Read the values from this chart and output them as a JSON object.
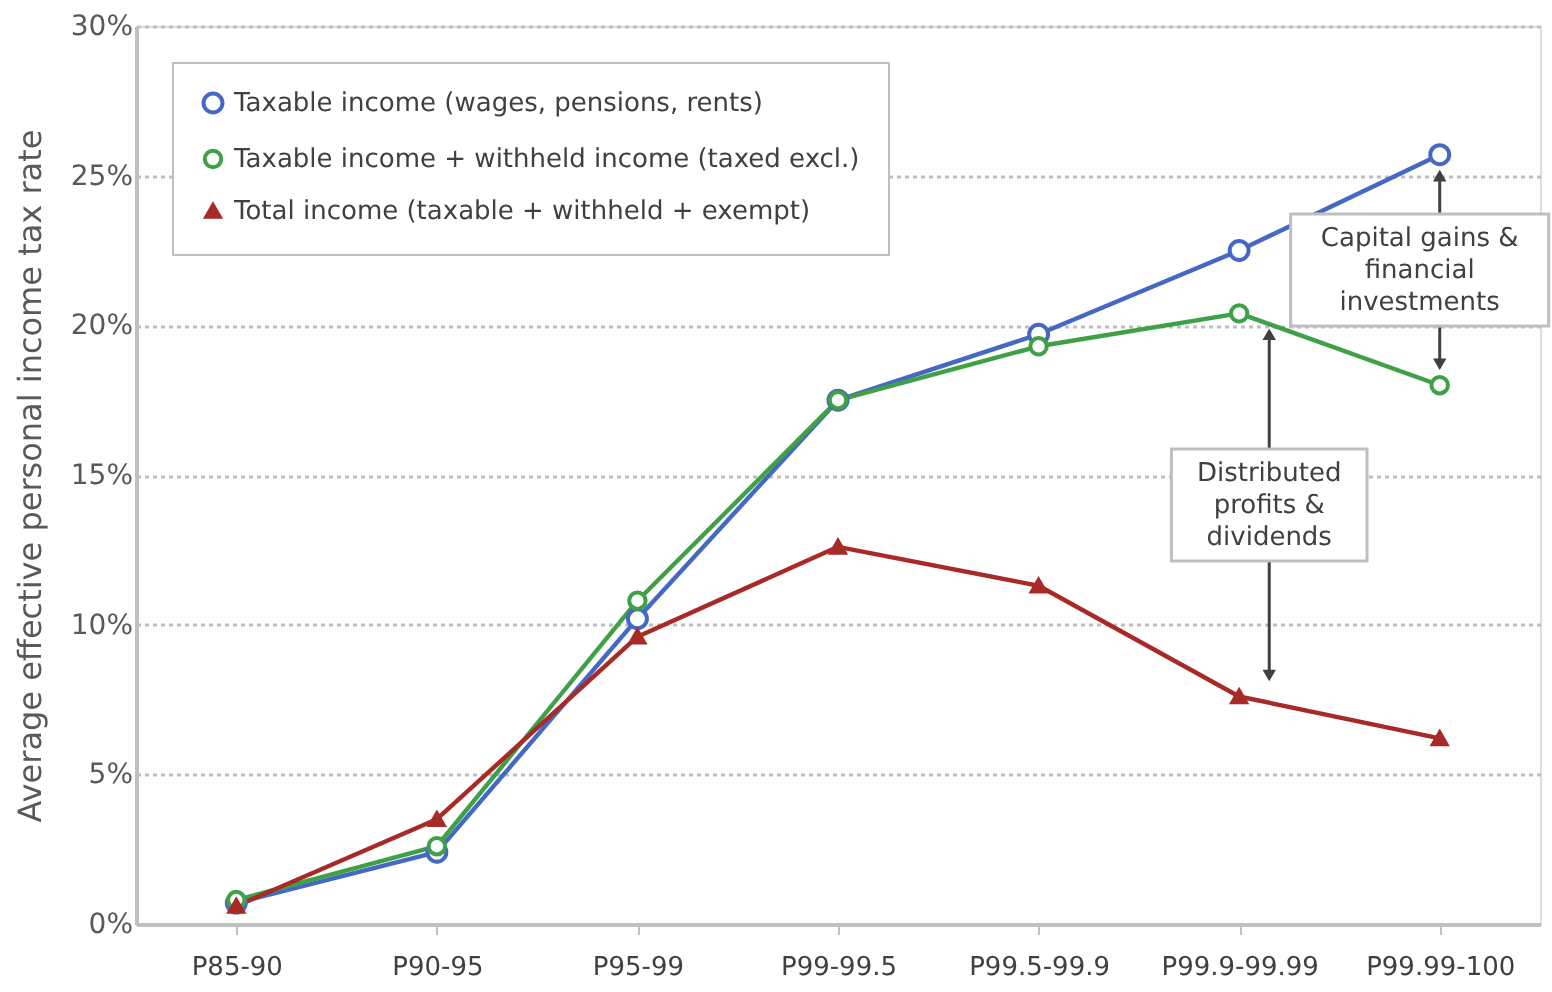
{
  "chart_data": {
    "type": "line",
    "ylabel": "Average effective personal income tax rate",
    "categories": [
      "P85-90",
      "P90-95",
      "P95-99",
      "P99-99.5",
      "P99.5-99.9",
      "P99.9-99.99",
      "P99.99-100"
    ],
    "series": [
      {
        "name": "Taxable income (wages, pensions, rents)",
        "color": "#4468c4",
        "marker": "circle",
        "values": [
          0.7,
          2.4,
          10.2,
          17.5,
          19.7,
          22.5,
          25.7
        ]
      },
      {
        "name": "Taxable income + withheld income (taxed excl.)",
        "color": "#3fa048",
        "marker": "circle",
        "values": [
          0.8,
          2.6,
          10.8,
          17.5,
          19.3,
          20.4,
          18.0
        ]
      },
      {
        "name": "Total income (taxable + withheld + exempt)",
        "color": "#a82a26",
        "marker": "triangle",
        "values": [
          0.6,
          3.5,
          9.6,
          12.6,
          11.3,
          7.6,
          6.2
        ]
      }
    ],
    "ylim": [
      0,
      30
    ],
    "yticks": [
      {
        "value": 0,
        "label": "0%"
      },
      {
        "value": 5,
        "label": "5%"
      },
      {
        "value": 10,
        "label": "10%"
      },
      {
        "value": 15,
        "label": "15%"
      },
      {
        "value": 20,
        "label": "20%"
      },
      {
        "value": 25,
        "label": "25%"
      },
      {
        "value": 30,
        "label": "30%"
      }
    ],
    "grid": "y",
    "legend": "top left",
    "line_style": "solid",
    "annotations": [
      "Capital gains &\nfinancial\ninvestments",
      "Distributed\nprofits &\ndividends"
    ]
  }
}
